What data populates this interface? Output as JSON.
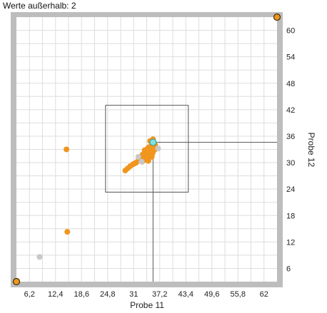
{
  "outside": {
    "label": "Werte außerhalb:",
    "count": "2",
    "text": "Werte außerhalb: 2"
  },
  "colors": {
    "frame": "#bdbdbd",
    "grid": "#dedede",
    "point_main": "#f0961e",
    "point_inactive": "#c8c8c8",
    "selected": "#7fe3e3",
    "handle_fill": "#f0961e",
    "handle_stroke": "#3a2a10",
    "rect": "#555555",
    "crosshair": "#555555"
  },
  "chart_data": {
    "type": "scatter",
    "xlabel": "Probe 11",
    "ylabel": "Probe 12",
    "xlim": [
      3.1,
      65.1
    ],
    "ylim": [
      3.0,
      63.0
    ],
    "xticks": [
      6.2,
      12.4,
      18.6,
      24.8,
      31,
      37.2,
      43.4,
      49.6,
      55.8,
      62
    ],
    "xtick_labels": [
      "6,2",
      "12,4",
      "18,6",
      "24,8",
      "31",
      "37,2",
      "43,4",
      "49,6",
      "55,8",
      "62"
    ],
    "yticks": [
      6,
      12,
      18,
      24,
      30,
      36,
      42,
      48,
      54,
      60
    ],
    "ytick_labels": [
      "6",
      "12",
      "18",
      "24",
      "30",
      "36",
      "42",
      "48",
      "54",
      "60"
    ],
    "grid": true,
    "selection_rect": {
      "x": [
        24.3,
        44.0
      ],
      "y": [
        23.3,
        43.0
      ]
    },
    "crosshair": {
      "x": 35.6,
      "y": 34.6
    },
    "series": [
      {
        "role": "main",
        "x": [
          35.6,
          36.1,
          35.4,
          34.9,
          35.8,
          35.2,
          34.6,
          36.0,
          35.0,
          34.3,
          35.5,
          34.8,
          34.0,
          35.3,
          33.6,
          34.6,
          33.1,
          34.2,
          33.9,
          32.8,
          33.4,
          34.5,
          33.0,
          32.2,
          31.6,
          30.8,
          31.2,
          30.2,
          29.6,
          29.0,
          15.0,
          15.2
        ],
        "y": [
          35.3,
          34.0,
          34.5,
          34.9,
          33.3,
          33.8,
          33.5,
          32.9,
          32.6,
          33.2,
          32.1,
          31.7,
          32.4,
          31.3,
          32.8,
          31.0,
          31.8,
          31.9,
          30.6,
          31.2,
          30.9,
          30.4,
          30.2,
          30.6,
          30.0,
          29.6,
          29.8,
          29.2,
          28.7,
          28.2,
          33.0,
          14.3
        ]
      },
      {
        "role": "inactive",
        "x": [
          8.6,
          32.1,
          32.9,
          36.8
        ],
        "y": [
          8.6,
          31.3,
          30.2,
          33.2
        ]
      }
    ],
    "selected_point": {
      "x": 35.6,
      "y": 34.6
    }
  }
}
